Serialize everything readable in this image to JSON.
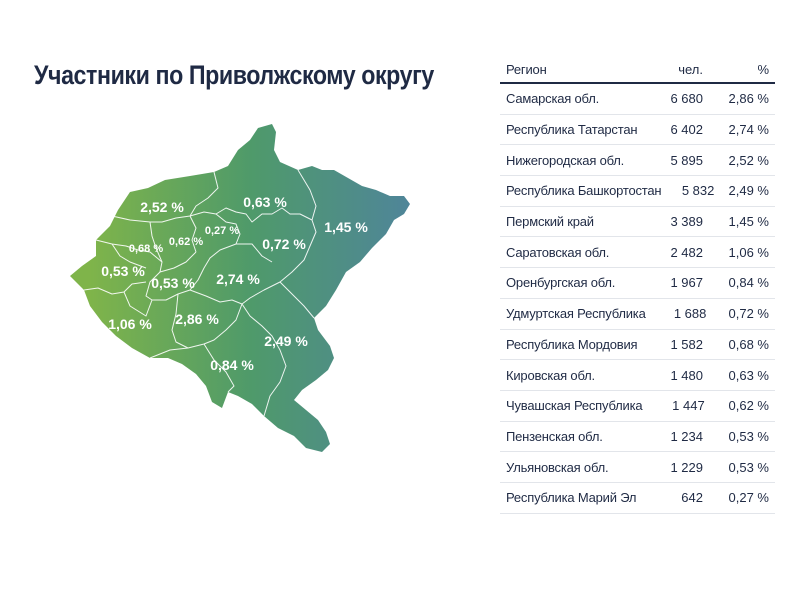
{
  "title": "Участники по Приволжскому округу",
  "map": {
    "gradient": {
      "start": "#7fb44a",
      "middle": "#4f9a6a",
      "end": "#4f8599"
    },
    "regions": [
      {
        "name": "Самарская обл.",
        "label": "2,86 %"
      },
      {
        "name": "Республика Татарстан",
        "label": "2,74 %"
      },
      {
        "name": "Нижегородская обл.",
        "label": "2,52 %"
      },
      {
        "name": "Республика Башкортостан",
        "label": "2,49 %"
      },
      {
        "name": "Пермский край",
        "label": "1,45 %"
      },
      {
        "name": "Саратовская обл.",
        "label": "1,06 %"
      },
      {
        "name": "Оренбургская обл.",
        "label": "0,84 %"
      },
      {
        "name": "Удмуртская Республика",
        "label": "0,72 %"
      },
      {
        "name": "Республика Мордовия",
        "label": "0,68 %"
      },
      {
        "name": "Кировская обл.",
        "label": "0,63 %"
      },
      {
        "name": "Чувашская Республика",
        "label": "0,62 %"
      },
      {
        "name": "Пензенская обл.",
        "label": "0,53 %"
      },
      {
        "name": "Ульяновская обл.",
        "label": "0,53 %"
      },
      {
        "name": "Республика Марий Эл",
        "label": "0,27 %"
      }
    ]
  },
  "table": {
    "headers": {
      "region": "Регион",
      "count": "чел.",
      "percent": "%"
    },
    "rows": [
      {
        "region": "Самарская обл.",
        "count": "6 680",
        "percent": "2,86 %"
      },
      {
        "region": "Республика Татарстан",
        "count": "6 402",
        "percent": "2,74 %"
      },
      {
        "region": "Нижегородская обл.",
        "count": "5 895",
        "percent": "2,52 %"
      },
      {
        "region": "Республика Башкортостан",
        "count": "5 832",
        "percent": "2,49 %"
      },
      {
        "region": "Пермский край",
        "count": "3 389",
        "percent": "1,45 %"
      },
      {
        "region": "Саратовская обл.",
        "count": "2 482",
        "percent": "1,06 %"
      },
      {
        "region": "Оренбургская обл.",
        "count": "1 967",
        "percent": "0,84 %"
      },
      {
        "region": "Удмуртская Республика",
        "count": "1 688",
        "percent": "0,72 %"
      },
      {
        "region": "Республика Мордовия",
        "count": "1 582",
        "percent": "0,68 %"
      },
      {
        "region": "Кировская обл.",
        "count": "1 480",
        "percent": "0,63 %"
      },
      {
        "region": "Чувашская Республика",
        "count": "1 447",
        "percent": "0,62 %"
      },
      {
        "region": "Пензенская обл.",
        "count": "1 234",
        "percent": "0,53 %"
      },
      {
        "region": "Ульяновская обл.",
        "count": "1 229",
        "percent": "0,53 %"
      },
      {
        "region": "Республика Марий Эл",
        "count": "642",
        "percent": "0,27 %"
      }
    ]
  }
}
